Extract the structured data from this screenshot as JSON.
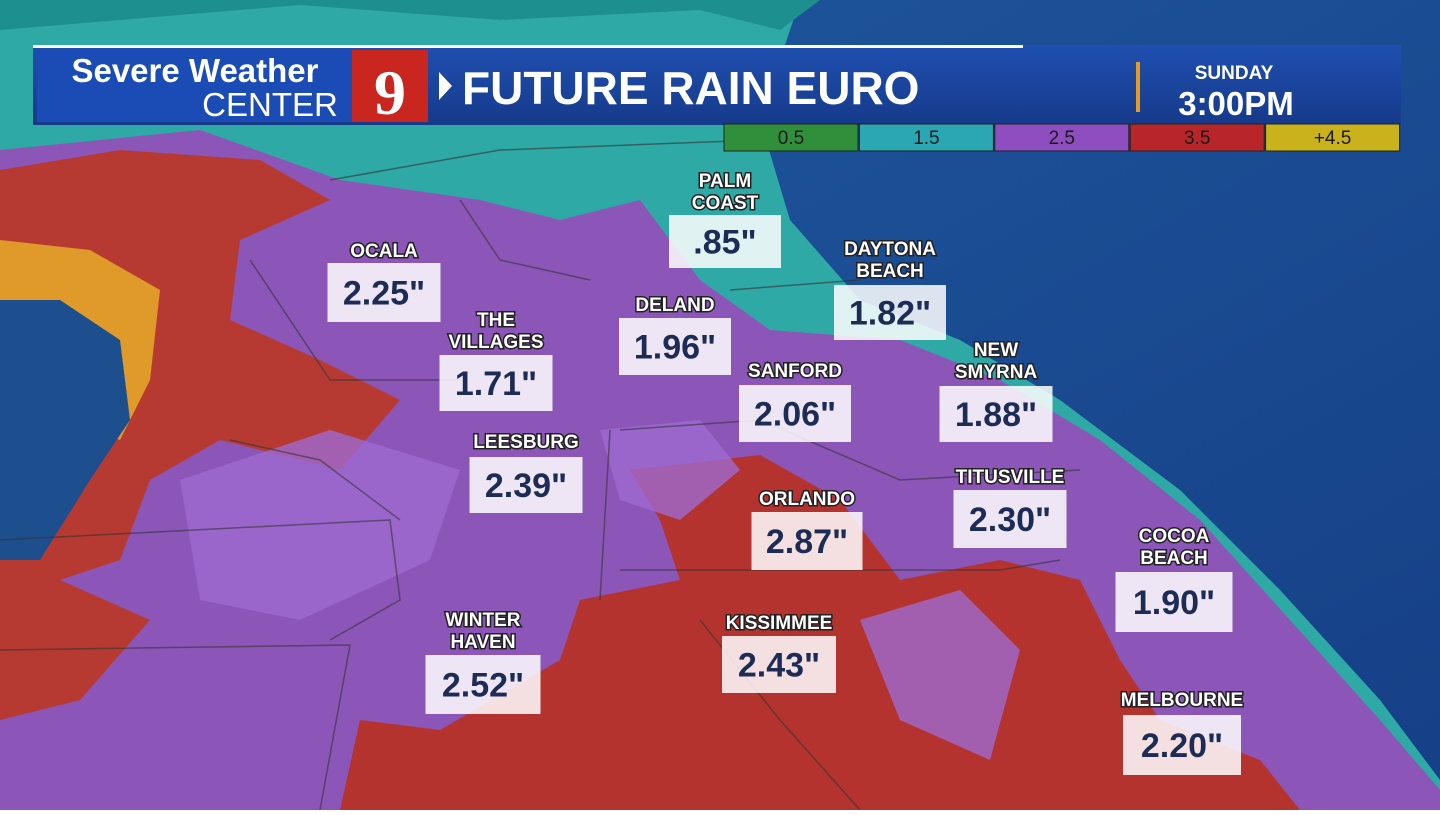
{
  "header": {
    "brand_line1": "Severe Weather",
    "brand_line2": "CENTER",
    "channel": "9",
    "title": "FUTURE RAIN EURO",
    "day": "SUNDAY",
    "time": "3:00PM"
  },
  "legend": {
    "items": [
      {
        "label": "0.5",
        "color": "#2f8f3a"
      },
      {
        "label": "1.5",
        "color": "#2aa7b3"
      },
      {
        "label": "2.5",
        "color": "#8e4ec0"
      },
      {
        "label": "3.5",
        "color": "#b8262a"
      },
      {
        "label": "+4.5",
        "color": "#c9b21c"
      }
    ]
  },
  "cities": [
    {
      "name": [
        "PALM",
        "COAST"
      ],
      "value": ".85\""
    },
    {
      "name": [
        "OCALA"
      ],
      "value": "2.25\""
    },
    {
      "name": [
        "DAYTONA",
        "BEACH"
      ],
      "value": "1.82\""
    },
    {
      "name": [
        "THE",
        "VILLAGES"
      ],
      "value": "1.71\""
    },
    {
      "name": [
        "DELAND"
      ],
      "value": "1.96\""
    },
    {
      "name": [
        "SANFORD"
      ],
      "value": "2.06\""
    },
    {
      "name": [
        "NEW",
        "SMYRNA"
      ],
      "value": "1.88\""
    },
    {
      "name": [
        "LEESBURG"
      ],
      "value": "2.39\""
    },
    {
      "name": [
        "TITUSVILLE"
      ],
      "value": "2.30\""
    },
    {
      "name": [
        "ORLANDO"
      ],
      "value": "2.87\""
    },
    {
      "name": [
        "COCOA",
        "BEACH"
      ],
      "value": "1.90\""
    },
    {
      "name": [
        "WINTER",
        "HAVEN"
      ],
      "value": "2.52\""
    },
    {
      "name": [
        "KISSIMMEE"
      ],
      "value": "2.43\""
    },
    {
      "name": [
        "MELBOURNE"
      ],
      "value": "2.20\""
    }
  ]
}
